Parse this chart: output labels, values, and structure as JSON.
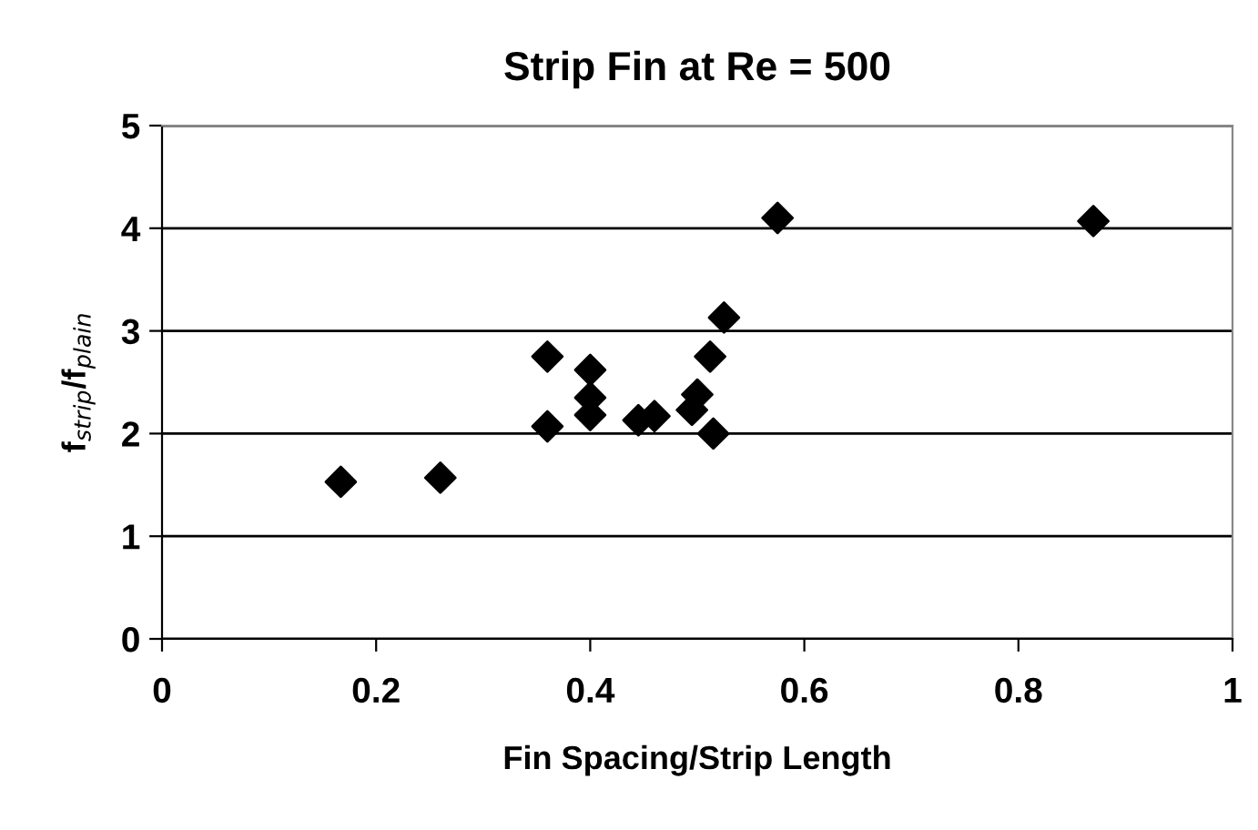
{
  "chart_data": {
    "type": "scatter",
    "title": "Strip Fin at Re = 500",
    "xlabel": "Fin Spacing/Strip Length",
    "ylabel": "f$_{strip}$/f$_{plain}$",
    "x": [
      0.167,
      0.26,
      0.36,
      0.36,
      0.4,
      0.4,
      0.4,
      0.445,
      0.46,
      0.495,
      0.5,
      0.512,
      0.515,
      0.525,
      0.575,
      0.87
    ],
    "values": [
      1.53,
      1.57,
      2.75,
      2.07,
      2.62,
      2.35,
      2.18,
      2.13,
      2.17,
      2.23,
      2.38,
      2.75,
      2.0,
      3.13,
      4.1,
      4.07
    ],
    "color": "#000000",
    "marker": "diamond",
    "grid": "y",
    "xlim": [
      0,
      1
    ],
    "xticks": [
      0,
      0.2,
      0.4,
      0.6,
      0.8,
      1
    ],
    "ylim": [
      0,
      5
    ],
    "yticks": [
      0,
      1,
      2,
      3,
      4,
      5
    ]
  }
}
